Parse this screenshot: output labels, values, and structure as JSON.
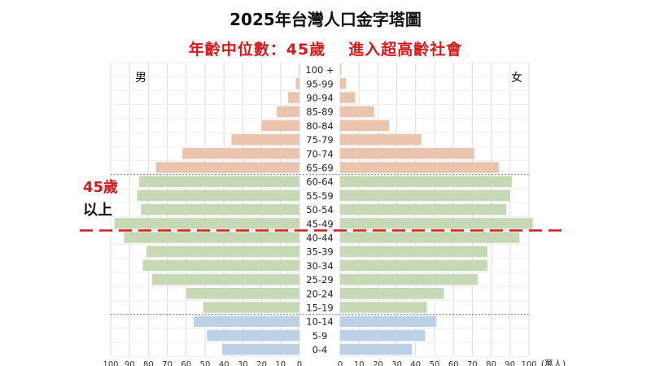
{
  "title": "2025年台灣人口金字塔圖",
  "subtitle_left": "年齡中位數：45歲",
  "subtitle_right": "進入超高齡社會",
  "marker_label_line1": "45歲",
  "marker_label_line2": "以上",
  "colors": {
    "elderly": "#ebc4ad",
    "working": "#c7d9b4",
    "young": "#bcd0e6",
    "marker": "#d6191b",
    "grid": "#dddddd",
    "divider": "#999999"
  },
  "chart_data": {
    "type": "bar",
    "orientation": "horizontal",
    "title": "2025年台灣人口金字塔圖",
    "unit": "(萬人)",
    "left_label": "男",
    "right_label": "女",
    "xlim": [
      0,
      100
    ],
    "x_ticks": [
      100,
      90,
      80,
      70,
      60,
      50,
      40,
      30,
      20,
      10,
      0
    ],
    "grid": true,
    "categories": [
      "100 +",
      "95-99",
      "90-94",
      "85-89",
      "80-84",
      "75-79",
      "70-74",
      "65-69",
      "60-64",
      "55-59",
      "50-54",
      "45-49",
      "40-44",
      "35-39",
      "30-34",
      "25-29",
      "20-24",
      "15-19",
      "10-14",
      "5-9",
      "0-4"
    ],
    "groups": [
      "elderly",
      "elderly",
      "elderly",
      "elderly",
      "elderly",
      "elderly",
      "elderly",
      "elderly",
      "working",
      "working",
      "working",
      "working",
      "working",
      "working",
      "working",
      "working",
      "working",
      "working",
      "young",
      "young",
      "young"
    ],
    "series": [
      {
        "name": "男",
        "values": [
          0.4,
          2,
          6,
          12,
          20,
          36,
          62,
          76,
          85,
          86,
          84,
          98,
          93,
          81,
          83,
          78,
          60,
          51,
          56,
          49,
          41
        ]
      },
      {
        "name": "女",
        "values": [
          0.6,
          3,
          8,
          18,
          26,
          43,
          71,
          84,
          91,
          90,
          88,
          102,
          95,
          78,
          78,
          73,
          55,
          46,
          51,
          45,
          38
        ]
      }
    ],
    "age_dividers_after": [
      "65-69",
      "15-19"
    ],
    "marker": {
      "between": [
        "45-49",
        "40-44"
      ],
      "label": "45歲 以上"
    }
  }
}
